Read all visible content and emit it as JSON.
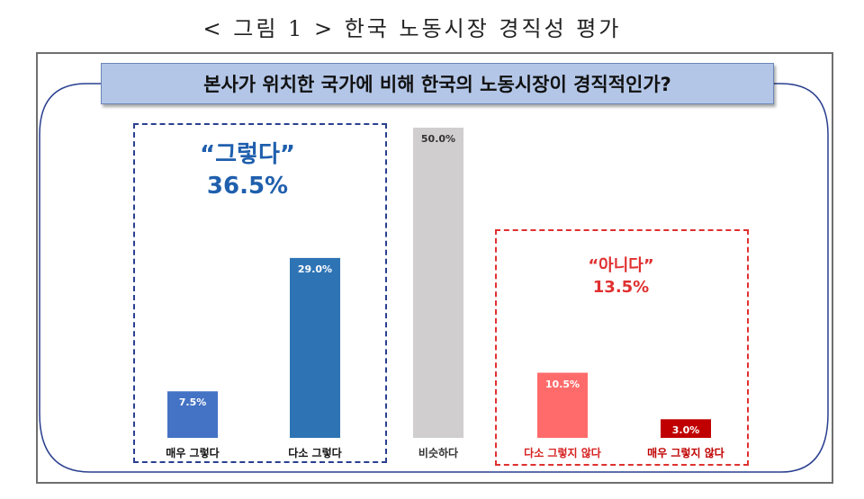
{
  "page_title": "< 그림 1 > 한국 노동시장 경직성 평가",
  "groups": {
    "yes": {
      "quote": "“그렇다”",
      "total": "36.5%",
      "color": "#1f5fad"
    },
    "no": {
      "quote": "“아니다”",
      "total": "13.5%",
      "color": "#e03030"
    }
  },
  "chart_data": {
    "type": "bar",
    "title": "본사가 위치한 국가에 비해 한국의 노동시장이 경직적인가?",
    "categories": [
      "매우 그렇다",
      "다소 그렇다",
      "비슷하다",
      "다소 그렇지 않다",
      "매우 그렇지 않다"
    ],
    "values": [
      7.5,
      29.0,
      50.0,
      10.5,
      3.0
    ],
    "value_labels": [
      "7.5%",
      "29.0%",
      "50.0%",
      "10.5%",
      "3.0%"
    ],
    "colors": [
      "#4472c4",
      "#2e74b5",
      "#d0cece",
      "#ff6b6b",
      "#c00000"
    ],
    "label_colors": [
      "#111111",
      "#111111",
      "#333333",
      "#d62020",
      "#c00000"
    ],
    "value_text_colors": [
      "#ffffff",
      "#ffffff",
      "#333333",
      "#ffffff",
      "#ffffff"
    ],
    "ylim": [
      0,
      50
    ],
    "grid": false,
    "legend": "none"
  }
}
